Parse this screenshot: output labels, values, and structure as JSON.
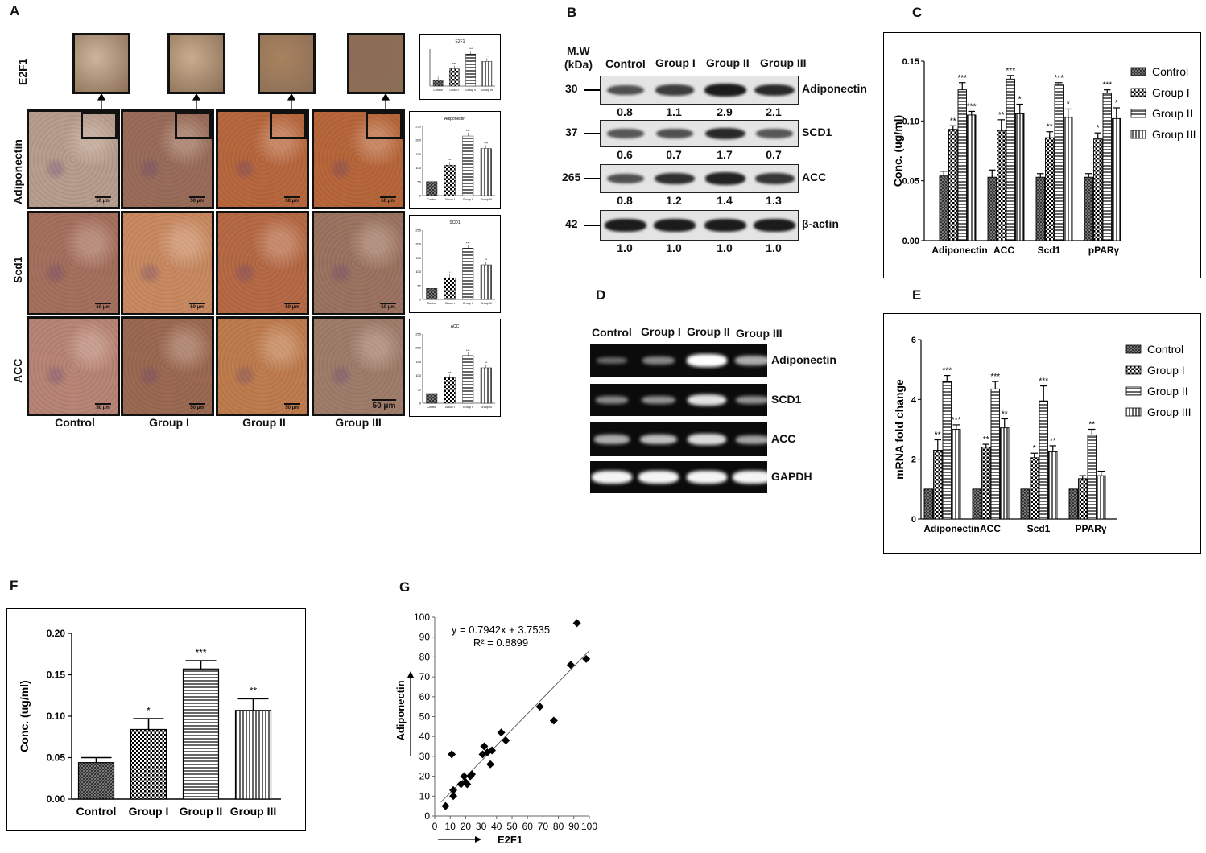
{
  "panels": {
    "A": "A",
    "B": "B",
    "C": "C",
    "D": "D",
    "E": "E",
    "F": "F",
    "G": "G"
  },
  "panelA": {
    "row_labels": [
      "E2F1",
      "Adiponectin",
      "Scd1",
      "ACC"
    ],
    "col_labels": [
      "Control",
      "Group I",
      "Group II",
      "Group III"
    ],
    "scale_bar": "50 μm",
    "mini_charts": [
      {
        "title": "E2F1",
        "values": [
          50,
          140,
          260,
          200
        ],
        "ymax": 300,
        "stars": [
          "",
          "***",
          "***",
          "***"
        ]
      },
      {
        "title": "Adiponectin",
        "values": [
          50,
          110,
          215,
          170
        ],
        "ymax": 250,
        "stars": [
          "",
          "**",
          "***",
          "***"
        ],
        "ticks": [
          "0",
          "50",
          "100",
          "150",
          "200",
          "250"
        ]
      },
      {
        "title": "SCD1",
        "values": [
          40,
          78,
          185,
          125
        ],
        "ymax": 250,
        "stars": [
          "",
          "*",
          "***",
          "**"
        ],
        "ticks": [
          "0",
          "50",
          "100",
          "150",
          "200",
          "250"
        ]
      },
      {
        "title": "ACC",
        "values": [
          35,
          92,
          172,
          128
        ],
        "ymax": 250,
        "stars": [
          "",
          "**",
          "***",
          "**"
        ],
        "ticks": [
          "0",
          "50",
          "100",
          "150",
          "200",
          "250"
        ]
      }
    ],
    "mini_categories": [
      "Control",
      "Group I",
      "Group II",
      "Group III"
    ],
    "tile_colors": [
      [
        "#cdb59b",
        "#c9ad8f",
        "#a9825f",
        "#8d6a55"
      ],
      [
        "#b89e8e",
        "#9a6d5a",
        "#b8683e",
        "#b8673b"
      ],
      [
        "#a6705e",
        "#c98a62",
        "#b66a46",
        "#9c7461"
      ],
      [
        "#b88576",
        "#9c6a52",
        "#bf7c4e",
        "#a07d6b"
      ]
    ]
  },
  "panelB": {
    "mw_header": "M.W",
    "kda_header": "(kDa)",
    "lanes": [
      "Control",
      "Group I",
      "Group II",
      "Group III"
    ],
    "rows": [
      {
        "mw": "30",
        "label": "Adiponectin",
        "values": [
          "0.8",
          "1.1",
          "2.9",
          "2.1"
        ],
        "intensity": [
          0.55,
          0.7,
          0.95,
          0.85
        ]
      },
      {
        "mw": "37",
        "label": "SCD1",
        "values": [
          "0.6",
          "0.7",
          "1.7",
          "0.7"
        ],
        "intensity": [
          0.5,
          0.55,
          0.85,
          0.5
        ]
      },
      {
        "mw": "265",
        "label": "ACC",
        "values": [
          "0.8",
          "1.2",
          "1.4",
          "1.3"
        ],
        "intensity": [
          0.55,
          0.8,
          0.9,
          0.75
        ]
      },
      {
        "mw": "42",
        "label": "β-actin",
        "values": [
          "1.0",
          "1.0",
          "1.0",
          "1.0"
        ],
        "intensity": [
          0.95,
          0.95,
          0.95,
          0.95
        ]
      }
    ]
  },
  "chart_data": [
    {
      "id": "C",
      "type": "bar",
      "categories": [
        "Adiponectin",
        "ACC",
        "Scd1",
        "pPARγ"
      ],
      "ylabel": "Conc. (ug/ml)",
      "ylim": [
        0,
        0.15
      ],
      "yticks": [
        "0.00",
        "0.05",
        "0.10",
        "0.15"
      ],
      "series": [
        {
          "name": "Control",
          "values": [
            0.054,
            0.053,
            0.053,
            0.053
          ],
          "err": [
            0.004,
            0.006,
            0.003,
            0.003
          ],
          "stars": [
            "",
            "",
            "",
            ""
          ]
        },
        {
          "name": "Group I",
          "values": [
            0.093,
            0.092,
            0.086,
            0.085
          ],
          "err": [
            0.003,
            0.009,
            0.005,
            0.005
          ],
          "stars": [
            "**",
            "**",
            "**",
            "*"
          ]
        },
        {
          "name": "Group II",
          "values": [
            0.126,
            0.135,
            0.13,
            0.123
          ],
          "err": [
            0.006,
            0.003,
            0.002,
            0.003
          ],
          "stars": [
            "***",
            "***",
            "***",
            "***"
          ]
        },
        {
          "name": "Group III",
          "values": [
            0.105,
            0.106,
            0.103,
            0.102
          ],
          "err": [
            0.003,
            0.008,
            0.007,
            0.009
          ],
          "stars": [
            "***",
            "*",
            "*",
            "*"
          ]
        }
      ]
    },
    {
      "id": "E",
      "type": "bar",
      "categories": [
        "Adiponectin",
        "ACC",
        "Scd1",
        "PPARγ"
      ],
      "ylabel": "mRNA fold change",
      "ylim": [
        0,
        6
      ],
      "yticks": [
        "0",
        "2",
        "4",
        "6"
      ],
      "series": [
        {
          "name": "Control",
          "values": [
            1,
            1,
            1,
            1
          ],
          "err": [
            0,
            0,
            0,
            0
          ],
          "stars": [
            "",
            "",
            "",
            ""
          ]
        },
        {
          "name": "Group I",
          "values": [
            2.3,
            2.4,
            2.05,
            1.35
          ],
          "err": [
            0.35,
            0.1,
            0.15,
            0.1
          ],
          "stars": [
            "**",
            "**",
            "*",
            ""
          ]
        },
        {
          "name": "Group II",
          "values": [
            4.6,
            4.35,
            3.95,
            2.8
          ],
          "err": [
            0.2,
            0.25,
            0.5,
            0.2
          ],
          "stars": [
            "***",
            "***",
            "***",
            "**"
          ]
        },
        {
          "name": "Group III",
          "values": [
            3,
            3.05,
            2.25,
            1.45
          ],
          "err": [
            0.15,
            0.3,
            0.2,
            0.15
          ],
          "stars": [
            "***",
            "**",
            "**",
            ""
          ]
        }
      ]
    },
    {
      "id": "F",
      "type": "bar",
      "categories": [
        "Control",
        "Group I",
        "Group II",
        "Group III"
      ],
      "ylabel": "Conc. (ug/ml)",
      "ylim": [
        0,
        0.2
      ],
      "yticks": [
        "0.00",
        "0.05",
        "0.10",
        "0.15",
        "0.20"
      ],
      "values": [
        0.044,
        0.084,
        0.157,
        0.107
      ],
      "err": [
        0.006,
        0.013,
        0.01,
        0.014
      ],
      "stars": [
        "",
        "*",
        "***",
        "**"
      ]
    },
    {
      "id": "G",
      "type": "scatter",
      "xlabel": "E2F1",
      "ylabel": "Adiponectin",
      "xlim": [
        0,
        100
      ],
      "ylim": [
        0,
        100
      ],
      "xticks": [
        "0",
        "10",
        "20",
        "30",
        "40",
        "50",
        "60",
        "70",
        "80",
        "90",
        "100"
      ],
      "yticks": [
        "0",
        "10",
        "20",
        "30",
        "40",
        "50",
        "60",
        "70",
        "80",
        "90",
        "100"
      ],
      "equation": "y = 0.7942x + 3.7535",
      "r2": "R² = 0.8899",
      "trend": {
        "slope": 0.7942,
        "intercept": 3.7535
      },
      "points": [
        [
          7,
          5
        ],
        [
          11,
          31
        ],
        [
          12,
          10
        ],
        [
          12,
          13
        ],
        [
          17,
          16
        ],
        [
          19,
          20
        ],
        [
          20,
          17
        ],
        [
          21,
          16
        ],
        [
          23,
          20
        ],
        [
          24,
          21
        ],
        [
          31,
          31
        ],
        [
          32,
          35
        ],
        [
          34,
          32
        ],
        [
          36,
          26
        ],
        [
          37,
          33
        ],
        [
          43,
          42
        ],
        [
          46,
          38
        ],
        [
          68,
          55
        ],
        [
          77,
          48
        ],
        [
          88,
          76
        ],
        [
          92,
          97
        ],
        [
          98,
          79
        ]
      ]
    }
  ],
  "panelD": {
    "lanes": [
      "Control",
      "Group I",
      "Group II",
      "Group III"
    ],
    "rows": [
      {
        "label": "Adiponectin",
        "intensity": [
          0.2,
          0.35,
          1.0,
          0.55
        ]
      },
      {
        "label": "SCD1",
        "intensity": [
          0.35,
          0.4,
          0.85,
          0.4
        ]
      },
      {
        "label": "ACC",
        "intensity": [
          0.55,
          0.65,
          0.8,
          0.5
        ]
      },
      {
        "label": "GAPDH",
        "intensity": [
          0.95,
          0.95,
          0.95,
          0.95
        ]
      }
    ]
  }
}
